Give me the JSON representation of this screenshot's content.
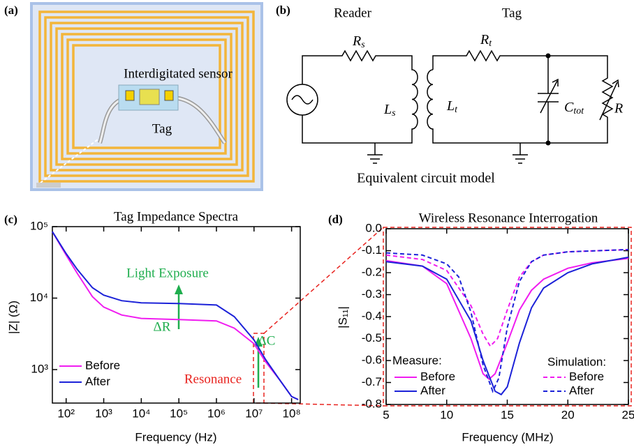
{
  "panel_a": {
    "label": "(a)",
    "sensor_label": "Interdigitated sensor",
    "tag_label": "Tag"
  },
  "panel_b": {
    "label": "(b)",
    "reader_label": "Reader",
    "tag_label": "Tag",
    "components": [
      {
        "main": "R",
        "sub": "s"
      },
      {
        "main": "L",
        "sub": "s"
      },
      {
        "main": "L",
        "sub": "t"
      },
      {
        "main": "R",
        "sub": "t"
      },
      {
        "main": "C",
        "sub": "tot"
      },
      {
        "main": "R"
      }
    ],
    "caption": "Equivalent circuit model"
  },
  "chart_data": [
    {
      "type": "line",
      "panel_label": "(c)",
      "title": "Tag Impedance Spectra",
      "xlabel": "Frequency (Hz)",
      "ylabel": "|Z| (Ω)",
      "xscale": "log",
      "yscale": "log",
      "xlim": [
        43,
        170000000
      ],
      "ylim": [
        340,
        100000
      ],
      "xticks": [
        {
          "value": 100,
          "label": "10²"
        },
        {
          "value": 1000,
          "label": "10³"
        },
        {
          "value": 10000,
          "label": "10⁴"
        },
        {
          "value": 100000,
          "label": "10⁵"
        },
        {
          "value": 1000000,
          "label": "10⁶"
        },
        {
          "value": 10000000,
          "label": "10⁷"
        },
        {
          "value": 100000000,
          "label": "10⁸"
        }
      ],
      "yticks": [
        {
          "value": 1000,
          "label": "10³"
        },
        {
          "value": 10000,
          "label": "10⁴"
        },
        {
          "value": 100000,
          "label": "10⁵"
        }
      ],
      "x": [
        43,
        100,
        200,
        500,
        1000,
        3000,
        10000,
        100000,
        1000000,
        3000000,
        10000000,
        20000000,
        50000000,
        100000000,
        150000000
      ],
      "series": [
        {
          "name": "Before",
          "color": "#f01cf0",
          "values": [
            85000,
            40000,
            22000,
            10500,
            7500,
            5800,
            5200,
            5000,
            4800,
            3800,
            2300,
            1300,
            700,
            420,
            380
          ]
        },
        {
          "name": "After",
          "color": "#1c22d8",
          "values": [
            85000,
            42000,
            25000,
            14000,
            11000,
            9200,
            8600,
            8400,
            8000,
            5500,
            2600,
            1400,
            700,
            420,
            380
          ]
        }
      ],
      "annotations": [
        {
          "text": "Light Exposure",
          "color": "#1fae4e"
        },
        {
          "text": "ΔR",
          "color": "#1fae4e"
        },
        {
          "text": "ΔC",
          "color": "#1fae4e"
        },
        {
          "text": "Resonance",
          "color": "#e8231f"
        }
      ]
    },
    {
      "type": "line",
      "panel_label": "(d)",
      "title": "Wireless Resonance Interrogation",
      "xlabel": "Frequency (MHz)",
      "ylabel": "|S₁₁|",
      "xlim": [
        5,
        25
      ],
      "ylim": [
        -0.8,
        0
      ],
      "xticks": [
        5,
        10,
        15,
        20,
        25
      ],
      "yticks": [
        {
          "value": 0,
          "label": "0.0"
        },
        -0.1,
        -0.2,
        -0.3,
        -0.4,
        -0.5,
        -0.6,
        -0.7,
        -0.8
      ],
      "legend_groups": [
        "Measure:",
        "Simulation:"
      ],
      "series": [
        {
          "name": "Before",
          "color": "#f01cf0",
          "linestyle": "solid",
          "x": [
            5,
            8,
            10,
            12,
            13,
            13.5,
            14,
            15,
            16,
            17,
            18,
            20,
            22,
            25
          ],
          "values": [
            -0.145,
            -0.17,
            -0.25,
            -0.5,
            -0.66,
            -0.685,
            -0.66,
            -0.52,
            -0.37,
            -0.28,
            -0.23,
            -0.18,
            -0.155,
            -0.135
          ]
        },
        {
          "name": "After",
          "color": "#1c22d8",
          "linestyle": "solid",
          "x": [
            5,
            8,
            10,
            12,
            13,
            14,
            14.5,
            15,
            16,
            17,
            18,
            20,
            22,
            25
          ],
          "values": [
            -0.15,
            -0.17,
            -0.23,
            -0.42,
            -0.6,
            -0.74,
            -0.755,
            -0.72,
            -0.52,
            -0.36,
            -0.27,
            -0.2,
            -0.16,
            -0.13
          ]
        },
        {
          "name": "Before",
          "color": "#f01cf0",
          "linestyle": "dashed",
          "x": [
            5,
            8,
            10,
            12,
            13,
            13.6,
            14.2,
            15,
            16,
            17,
            18,
            20,
            25
          ],
          "values": [
            -0.12,
            -0.14,
            -0.19,
            -0.35,
            -0.48,
            -0.535,
            -0.5,
            -0.37,
            -0.22,
            -0.15,
            -0.12,
            -0.105,
            -0.095
          ]
        },
        {
          "name": "After",
          "color": "#1c22d8",
          "linestyle": "dashed",
          "x": [
            5,
            8,
            10,
            11,
            12,
            13,
            13.8,
            14.3,
            15,
            16,
            17,
            18,
            20,
            25
          ],
          "values": [
            -0.11,
            -0.12,
            -0.16,
            -0.22,
            -0.38,
            -0.62,
            -0.74,
            -0.68,
            -0.45,
            -0.24,
            -0.15,
            -0.12,
            -0.105,
            -0.095
          ]
        }
      ]
    }
  ]
}
